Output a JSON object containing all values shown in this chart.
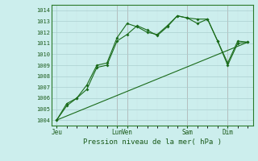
{
  "xlabel": "Pression niveau de la mer( hPa )",
  "bg_color": "#cceeed",
  "grid_color_minor": "#c8e4e4",
  "grid_color_major": "#aacfcf",
  "vline_color": "#cc9999",
  "line_color": "#1a6b1a",
  "ylim": [
    1003.5,
    1014.5
  ],
  "yticks": [
    1004,
    1005,
    1006,
    1007,
    1008,
    1009,
    1010,
    1011,
    1012,
    1013,
    1014
  ],
  "xlim": [
    0,
    20
  ],
  "xtick_positions": [
    0.5,
    6.5,
    7.5,
    13.5,
    17.5
  ],
  "xtick_labels": [
    "Jeu",
    "Lun",
    "Ven",
    "Sam",
    "Dim"
  ],
  "vline_positions": [
    6.5,
    7.5,
    13.5,
    17.5
  ],
  "series1_x": [
    0.5,
    1.5,
    2.5,
    3.5,
    4.5,
    5.5,
    6.5,
    7.5,
    8.5,
    9.5,
    10.5,
    11.5,
    12.5,
    13.5,
    14.5,
    15.5,
    16.5,
    17.5,
    18.5,
    19.5
  ],
  "series1_y": [
    1004.0,
    1005.3,
    1006.0,
    1006.8,
    1008.8,
    1009.0,
    1011.2,
    1011.8,
    1012.6,
    1012.2,
    1011.7,
    1012.5,
    1013.5,
    1013.3,
    1013.2,
    1013.2,
    1011.2,
    1009.0,
    1011.0,
    1011.1
  ],
  "series2_x": [
    0.5,
    1.5,
    2.5,
    3.5,
    4.5,
    5.5,
    6.5,
    7.5,
    8.5,
    9.5,
    10.5,
    11.5,
    12.5,
    13.5,
    14.5,
    15.5,
    16.5,
    17.5,
    18.5,
    19.5
  ],
  "series2_y": [
    1004.0,
    1005.5,
    1006.0,
    1007.2,
    1009.0,
    1009.2,
    1011.5,
    1012.8,
    1012.5,
    1012.0,
    1011.8,
    1012.6,
    1013.5,
    1013.3,
    1012.8,
    1013.2,
    1011.2,
    1009.2,
    1011.2,
    1011.1
  ],
  "series3_x": [
    0.5,
    19.5
  ],
  "series3_y": [
    1004.0,
    1011.1
  ]
}
